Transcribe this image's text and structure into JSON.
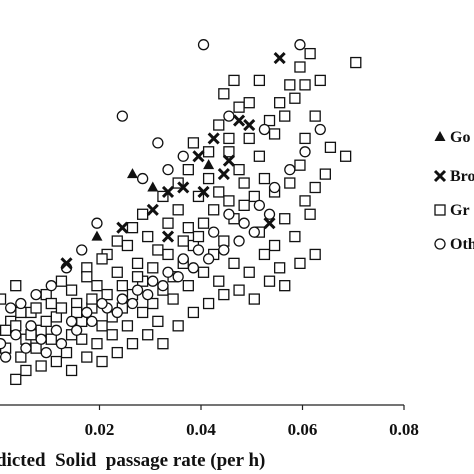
{
  "chart_data": {
    "type": "scatter",
    "xlabel": "dicted  Solid  passage rate (per h)",
    "xlim": [
      0.0,
      0.08
    ],
    "ylim": [
      0.0,
      0.08
    ],
    "x_ticks": [
      {
        "value": 0.02,
        "label": "0.02"
      },
      {
        "value": 0.04,
        "label": "0.04"
      },
      {
        "value": 0.06,
        "label": "0.06"
      },
      {
        "value": 0.08,
        "label": "0.08"
      }
    ],
    "grid": false,
    "legend_position": "right",
    "series": [
      {
        "name": "Go",
        "marker": "triangle",
        "points": [
          [
            0.0265,
            0.0495
          ],
          [
            0.0195,
            0.0355
          ],
          [
            0.0305,
            0.0465
          ],
          [
            0.0415,
            0.0515
          ]
        ]
      },
      {
        "name": "Bro",
        "marker": "x",
        "points": [
          [
            0.0135,
            0.0295
          ],
          [
            0.0245,
            0.0375
          ],
          [
            0.0305,
            0.0415
          ],
          [
            0.0335,
            0.0455
          ],
          [
            0.0365,
            0.0465
          ],
          [
            0.0395,
            0.0535
          ],
          [
            0.0425,
            0.0575
          ],
          [
            0.0445,
            0.0495
          ],
          [
            0.0475,
            0.0615
          ],
          [
            0.0495,
            0.0605
          ],
          [
            0.0535,
            0.0385
          ],
          [
            0.0555,
            0.0755
          ],
          [
            0.0335,
            0.0355
          ],
          [
            0.0405,
            0.0455
          ],
          [
            0.0455,
            0.0525
          ]
        ]
      },
      {
        "name": "Gr",
        "marker": "square",
        "points": [
          [
            0.0005,
            0.0215
          ],
          [
            0.0035,
            0.0245
          ],
          [
            0.0065,
            0.0185
          ],
          [
            0.0095,
            0.0225
          ],
          [
            0.0125,
            0.0255
          ],
          [
            0.0155,
            0.0205
          ],
          [
            0.0175,
            0.0285
          ],
          [
            0.0195,
            0.0245
          ],
          [
            0.0215,
            0.0315
          ],
          [
            0.0235,
            0.0275
          ],
          [
            0.0255,
            0.0335
          ],
          [
            0.0275,
            0.0295
          ],
          [
            0.0295,
            0.0355
          ],
          [
            0.0315,
            0.0325
          ],
          [
            0.0335,
            0.0385
          ],
          [
            0.0355,
            0.0415
          ],
          [
            0.0375,
            0.0375
          ],
          [
            0.0395,
            0.0445
          ],
          [
            0.0415,
            0.0485
          ],
          [
            0.0435,
            0.0455
          ],
          [
            0.0455,
            0.0545
          ],
          [
            0.0475,
            0.0505
          ],
          [
            0.0495,
            0.0575
          ],
          [
            0.0515,
            0.0535
          ],
          [
            0.0535,
            0.0615
          ],
          [
            0.0555,
            0.0655
          ],
          [
            0.0575,
            0.0695
          ],
          [
            0.0595,
            0.0735
          ],
          [
            0.0615,
            0.0765
          ],
          [
            0.0635,
            0.0705
          ],
          [
            0.0655,
            0.0555
          ],
          [
            0.0705,
            0.0745
          ],
          [
            0.0685,
            0.0535
          ],
          [
            0.0645,
            0.0495
          ],
          [
            0.0605,
            0.0435
          ],
          [
            0.0565,
            0.0395
          ],
          [
            0.0545,
            0.0335
          ],
          [
            0.0515,
            0.0365
          ],
          [
            0.0485,
            0.0425
          ],
          [
            0.0465,
            0.0395
          ],
          [
            0.0445,
            0.0345
          ],
          [
            0.0425,
            0.0315
          ],
          [
            0.0405,
            0.0385
          ],
          [
            0.0385,
            0.0335
          ],
          [
            0.0365,
            0.0295
          ],
          [
            0.0345,
            0.0265
          ],
          [
            0.0325,
            0.0235
          ],
          [
            0.0305,
            0.0205
          ],
          [
            0.0285,
            0.0255
          ],
          [
            0.0265,
            0.0225
          ],
          [
            0.0245,
            0.0195
          ],
          [
            0.0225,
            0.0175
          ],
          [
            0.0205,
            0.0155
          ],
          [
            0.0185,
            0.0195
          ],
          [
            0.0165,
            0.0165
          ],
          [
            0.0145,
            0.0135
          ],
          [
            0.0115,
            0.0175
          ],
          [
            0.0085,
            0.0145
          ],
          [
            0.0055,
            0.0125
          ],
          [
            0.0025,
            0.0165
          ],
          [
            0.0015,
            0.0105
          ],
          [
            0.0045,
            0.0085
          ],
          [
            0.0075,
            0.0105
          ],
          [
            0.0105,
            0.0125
          ],
          [
            0.0135,
            0.0095
          ],
          [
            0.0165,
            0.0125
          ],
          [
            0.0195,
            0.0115
          ],
          [
            0.0225,
            0.0135
          ],
          [
            0.0255,
            0.0155
          ],
          [
            0.0285,
            0.0185
          ],
          [
            0.0315,
            0.0165
          ],
          [
            0.0345,
            0.0215
          ],
          [
            0.0375,
            0.0245
          ],
          [
            0.0405,
            0.0275
          ],
          [
            0.0435,
            0.0255
          ],
          [
            0.0465,
            0.0295
          ],
          [
            0.0495,
            0.0275
          ],
          [
            0.0525,
            0.0315
          ],
          [
            0.0555,
            0.0285
          ],
          [
            0.0585,
            0.0355
          ],
          [
            0.0615,
            0.0405
          ],
          [
            0.0625,
            0.0465
          ],
          [
            0.0595,
            0.0515
          ],
          [
            0.0575,
            0.0475
          ],
          [
            0.0545,
            0.0455
          ],
          [
            0.0525,
            0.0485
          ],
          [
            0.0505,
            0.0445
          ],
          [
            0.0485,
            0.0475
          ],
          [
            0.0455,
            0.0435
          ],
          [
            0.0425,
            0.0415
          ],
          [
            0.0395,
            0.0355
          ],
          [
            0.0365,
            0.0345
          ],
          [
            0.0335,
            0.0315
          ],
          [
            0.0305,
            0.0285
          ],
          [
            0.0275,
            0.0265
          ],
          [
            0.0245,
            0.0245
          ],
          [
            0.0215,
            0.0225
          ],
          [
            0.0185,
            0.0215
          ],
          [
            0.0155,
            0.0185
          ],
          [
            0.0125,
            0.0195
          ],
          [
            0.0095,
            0.0165
          ],
          [
            0.0065,
            0.0135
          ],
          [
            0.0035,
            0.0155
          ],
          [
            0.0055,
            0.0055
          ],
          [
            0.0035,
            0.0035
          ],
          [
            0.0085,
            0.0065
          ],
          [
            0.0115,
            0.0075
          ],
          [
            0.0145,
            0.0055
          ],
          [
            0.0175,
            0.0085
          ],
          [
            0.0205,
            0.0075
          ],
          [
            0.0235,
            0.0095
          ],
          [
            0.0265,
            0.0115
          ],
          [
            0.0295,
            0.0135
          ],
          [
            0.0325,
            0.0115
          ],
          [
            0.0355,
            0.0155
          ],
          [
            0.0385,
            0.0185
          ],
          [
            0.0415,
            0.0205
          ],
          [
            0.0445,
            0.0225
          ],
          [
            0.0475,
            0.0235
          ],
          [
            0.0505,
            0.0215
          ],
          [
            0.0535,
            0.0255
          ],
          [
            0.0565,
            0.0245
          ],
          [
            0.0595,
            0.0295
          ],
          [
            0.0625,
            0.0315
          ],
          [
            0.0545,
            0.0585
          ],
          [
            0.0565,
            0.0625
          ],
          [
            0.0585,
            0.0665
          ],
          [
            0.0605,
            0.0695
          ],
          [
            0.0625,
            0.0625
          ],
          [
            0.0605,
            0.0575
          ],
          [
            0.0455,
            0.0575
          ],
          [
            0.0475,
            0.0645
          ],
          [
            0.0435,
            0.0605
          ],
          [
            0.0385,
            0.0565
          ],
          [
            0.0495,
            0.0655
          ],
          [
            0.0515,
            0.0705
          ],
          [
            0.0465,
            0.0705
          ],
          [
            0.0445,
            0.0675
          ],
          [
            0.0415,
            0.0545
          ],
          [
            0.0375,
            0.0505
          ],
          [
            0.0355,
            0.0475
          ],
          [
            0.0325,
            0.0445
          ],
          [
            0.0285,
            0.0405
          ],
          [
            0.0265,
            0.0375
          ],
          [
            0.0235,
            0.0345
          ],
          [
            0.0205,
            0.0305
          ],
          [
            0.0175,
            0.0265
          ],
          [
            0.0145,
            0.0235
          ],
          [
            0.0105,
            0.0205
          ],
          [
            0.0075,
            0.0195
          ],
          [
            0.0045,
            0.0185
          ],
          [
            0.0015,
            0.0145
          ]
        ]
      },
      {
        "name": "Oth",
        "marker": "circle",
        "points": [
          [
            0.0005,
            0.0115
          ],
          [
            0.0035,
            0.0135
          ],
          [
            0.0065,
            0.0155
          ],
          [
            0.0095,
            0.0095
          ],
          [
            0.0125,
            0.0115
          ],
          [
            0.0155,
            0.0145
          ],
          [
            0.0185,
            0.0165
          ],
          [
            0.0215,
            0.0195
          ],
          [
            0.0245,
            0.0215
          ],
          [
            0.0275,
            0.0235
          ],
          [
            0.0305,
            0.0255
          ],
          [
            0.0335,
            0.0275
          ],
          [
            0.0365,
            0.0305
          ],
          [
            0.0395,
            0.0325
          ],
          [
            0.0425,
            0.0365
          ],
          [
            0.0455,
            0.0405
          ],
          [
            0.0485,
            0.0385
          ],
          [
            0.0515,
            0.0425
          ],
          [
            0.0545,
            0.0465
          ],
          [
            0.0575,
            0.0505
          ],
          [
            0.0605,
            0.0545
          ],
          [
            0.0635,
            0.0595
          ],
          [
            0.0405,
            0.0785
          ],
          [
            0.0245,
            0.0625
          ],
          [
            0.0335,
            0.0505
          ],
          [
            0.0365,
            0.0535
          ],
          [
            0.0455,
            0.0625
          ],
          [
            0.0525,
            0.0595
          ],
          [
            0.0595,
            0.0785
          ],
          [
            0.0315,
            0.0565
          ],
          [
            0.0285,
            0.0485
          ],
          [
            0.0195,
            0.0385
          ],
          [
            0.0165,
            0.0325
          ],
          [
            0.0135,
            0.0285
          ],
          [
            0.0105,
            0.0245
          ],
          [
            0.0075,
            0.0225
          ],
          [
            0.0045,
            0.0205
          ],
          [
            0.0025,
            0.0195
          ],
          [
            0.0015,
            0.0085
          ],
          [
            0.0055,
            0.0105
          ],
          [
            0.0085,
            0.0125
          ],
          [
            0.0115,
            0.0145
          ],
          [
            0.0145,
            0.0165
          ],
          [
            0.0175,
            0.0185
          ],
          [
            0.0205,
            0.0205
          ],
          [
            0.0235,
            0.0185
          ],
          [
            0.0265,
            0.0205
          ],
          [
            0.0295,
            0.0225
          ],
          [
            0.0325,
            0.0245
          ],
          [
            0.0355,
            0.0265
          ],
          [
            0.0385,
            0.0285
          ],
          [
            0.0415,
            0.0305
          ],
          [
            0.0445,
            0.0325
          ],
          [
            0.0475,
            0.0345
          ],
          [
            0.0505,
            0.0365
          ],
          [
            0.0535,
            0.0405
          ]
        ]
      }
    ]
  }
}
